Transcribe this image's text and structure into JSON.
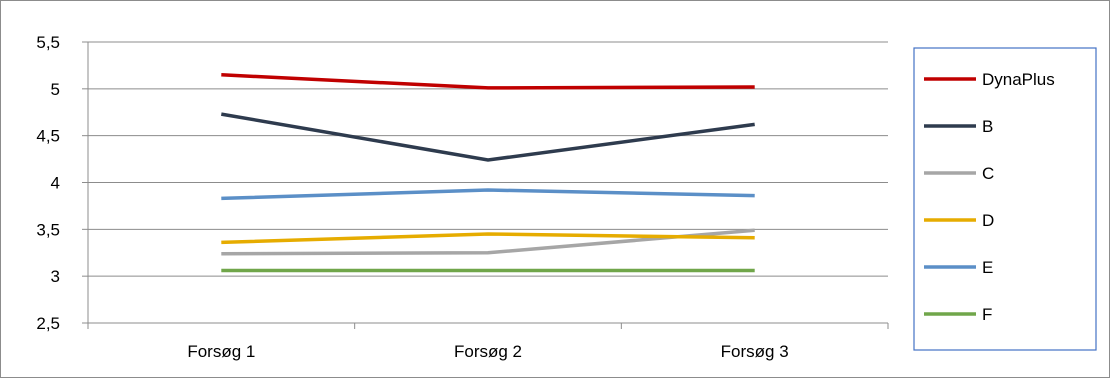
{
  "chart_data": {
    "type": "line",
    "title": "",
    "xlabel": "",
    "ylabel": "",
    "categories": [
      "Forsøg 1",
      "Forsøg 2",
      "Forsøg 3"
    ],
    "ylim": [
      2.5,
      5.5
    ],
    "yticks": [
      {
        "value": 2.5,
        "label": "2,5"
      },
      {
        "value": 3,
        "label": "3"
      },
      {
        "value": 3.5,
        "label": "3,5"
      },
      {
        "value": 4,
        "label": "4"
      },
      {
        "value": 4.5,
        "label": "4,5"
      },
      {
        "value": 5,
        "label": "5"
      },
      {
        "value": 5.5,
        "label": "5,5"
      }
    ],
    "grid": "horizontal",
    "legend": "right",
    "series": [
      {
        "name": "DynaPlus",
        "color": "#C00000",
        "values": [
          5.15,
          5.01,
          5.02
        ]
      },
      {
        "name": "B",
        "color": "#2E3B4E",
        "values": [
          4.73,
          4.24,
          4.62
        ]
      },
      {
        "name": "C",
        "color": "#A6A6A6",
        "values": [
          3.24,
          3.25,
          3.49
        ]
      },
      {
        "name": "D",
        "color": "#E6AC00",
        "values": [
          3.36,
          3.45,
          3.41
        ]
      },
      {
        "name": "E",
        "color": "#5B8FC7",
        "values": [
          3.83,
          3.92,
          3.86
        ]
      },
      {
        "name": "F",
        "color": "#70A64A",
        "values": [
          3.06,
          3.06,
          3.06
        ]
      }
    ]
  }
}
